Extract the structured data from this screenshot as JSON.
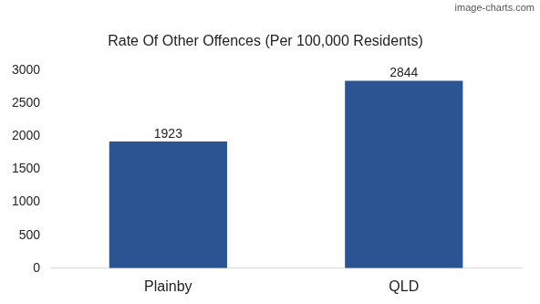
{
  "chart_data": {
    "type": "bar",
    "title": "Rate Of Other Offences (Per 100,000 Residents)",
    "annotation": "image-charts.com",
    "categories": [
      "Plainby",
      "QLD"
    ],
    "values": [
      1923,
      2844
    ],
    "color": "#2b5592",
    "ylim": [
      0,
      3000
    ],
    "yticks": [
      0,
      500,
      1000,
      1500,
      2000,
      2500,
      3000
    ],
    "grid": false,
    "data_labels": true
  }
}
